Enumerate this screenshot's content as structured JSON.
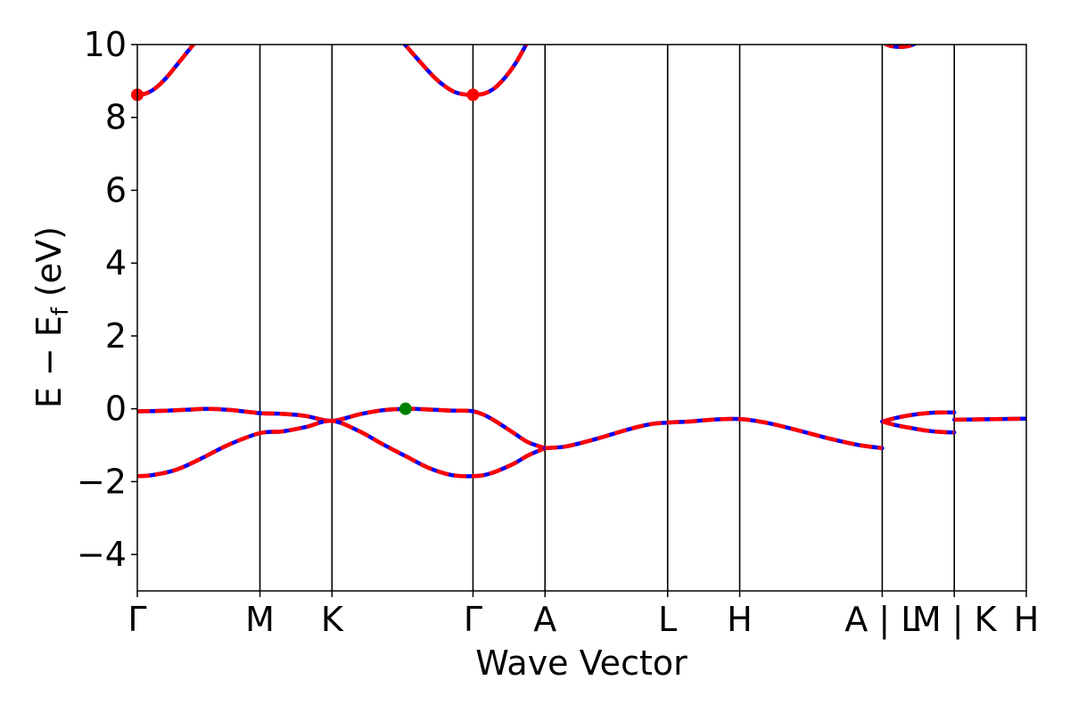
{
  "chart_data": {
    "type": "line",
    "xlabel": "Wave Vector",
    "ylabel_main": "E − E",
    "ylabel_sub": "f",
    "ylabel_unit": " (eV)",
    "ylim": [
      -5,
      10
    ],
    "yticks": [
      -4,
      -2,
      0,
      2,
      4,
      6,
      8,
      10
    ],
    "ytick_labels": [
      "−4",
      "−2",
      "0",
      "2",
      "4",
      "6",
      "8",
      "10"
    ],
    "xlim": [
      0,
      5.8
    ],
    "kpoints": [
      {
        "label": "Γ",
        "x": 0.0
      },
      {
        "label": "M",
        "x": 0.8
      },
      {
        "label": "K",
        "x": 1.27
      },
      {
        "label": "Γ",
        "x": 2.19
      },
      {
        "label": "A",
        "x": 2.66
      },
      {
        "label": "L",
        "x": 3.46
      },
      {
        "label": "H",
        "x": 3.93
      },
      {
        "label": "A | L",
        "x": 4.86
      },
      {
        "label": "M | K",
        "x": 5.33
      },
      {
        "label": "H",
        "x": 5.8
      }
    ],
    "segments": [
      {
        "name": "CB Γ-M",
        "x": [
          0,
          0.05,
          0.1,
          0.15,
          0.2,
          0.25,
          0.3,
          0.35,
          0.4,
          0.45,
          0.5
        ],
        "y": [
          8.62,
          8.65,
          8.75,
          8.92,
          9.14,
          9.4,
          9.66,
          9.92,
          10.18,
          10.45,
          10.7
        ]
      },
      {
        "name": "CB K-Γ",
        "x": [
          1.68,
          1.75,
          1.85,
          1.95,
          2.05,
          2.12,
          2.19,
          2.26,
          2.33,
          2.4,
          2.47,
          2.55
        ],
        "y": [
          10.3,
          9.98,
          9.5,
          9.05,
          8.74,
          8.64,
          8.62,
          8.65,
          8.8,
          9.1,
          9.5,
          10.1
        ]
      },
      {
        "name": "CB A|L-M",
        "x": [
          4.86,
          4.9,
          4.95,
          5.0,
          5.05,
          5.1
        ],
        "y": [
          10.08,
          9.98,
          9.94,
          9.94,
          9.98,
          10.08
        ]
      },
      {
        "name": "VB1 Γ-M-K-Γ-A",
        "x": [
          0,
          0.2,
          0.35,
          0.45,
          0.6,
          0.8,
          0.95,
          1.1,
          1.27,
          1.45,
          1.6,
          1.75,
          1.9,
          2.05,
          2.19,
          2.3,
          2.45,
          2.55,
          2.66
        ],
        "y": [
          -0.07,
          -0.05,
          -0.02,
          0.0,
          -0.03,
          -0.12,
          -0.14,
          -0.2,
          -0.33,
          -0.15,
          -0.04,
          0.0,
          -0.02,
          -0.05,
          -0.07,
          -0.25,
          -0.65,
          -0.92,
          -1.08
        ]
      },
      {
        "name": "VB2 Γ-M-K-Γ-A",
        "x": [
          0,
          0.1,
          0.25,
          0.4,
          0.6,
          0.8,
          0.95,
          1.1,
          1.27,
          1.45,
          1.6,
          1.75,
          1.9,
          2.05,
          2.19,
          2.3,
          2.45,
          2.55,
          2.66
        ],
        "y": [
          -1.85,
          -1.82,
          -1.68,
          -1.4,
          -0.98,
          -0.67,
          -0.62,
          -0.5,
          -0.33,
          -0.62,
          -0.97,
          -1.3,
          -1.62,
          -1.82,
          -1.85,
          -1.78,
          -1.52,
          -1.28,
          -1.08
        ]
      },
      {
        "name": "VB A-L-H-A",
        "x": [
          2.66,
          2.8,
          3.0,
          3.2,
          3.35,
          3.46,
          3.6,
          3.75,
          3.93,
          4.1,
          4.3,
          4.5,
          4.7,
          4.86
        ],
        "y": [
          -1.08,
          -1.03,
          -0.82,
          -0.57,
          -0.42,
          -0.38,
          -0.35,
          -0.3,
          -0.28,
          -0.38,
          -0.58,
          -0.8,
          -0.99,
          -1.08
        ]
      },
      {
        "name": "VB1 L-M",
        "x": [
          4.86,
          4.95,
          5.05,
          5.15,
          5.25,
          5.33
        ],
        "y": [
          -0.35,
          -0.25,
          -0.17,
          -0.12,
          -0.1,
          -0.1
        ]
      },
      {
        "name": "VB2 L-M",
        "x": [
          4.86,
          4.95,
          5.05,
          5.15,
          5.25,
          5.33
        ],
        "y": [
          -0.35,
          -0.45,
          -0.53,
          -0.6,
          -0.64,
          -0.65
        ]
      },
      {
        "name": "VB K-H",
        "x": [
          5.33,
          5.5,
          5.65,
          5.8
        ],
        "y": [
          -0.3,
          -0.29,
          -0.28,
          -0.27
        ]
      }
    ],
    "markers": [
      {
        "name": "cbm-1",
        "x": 0.0,
        "y": 8.62,
        "color": "#ff0000"
      },
      {
        "name": "cbm-2",
        "x": 2.19,
        "y": 8.62,
        "color": "#ff0000"
      },
      {
        "name": "vbm",
        "x": 1.75,
        "y": 0.0,
        "color": "#008000"
      }
    ],
    "colors": {
      "band_outer": "#0000ff",
      "band_dash": "#ff0000",
      "kline": "#000000"
    }
  }
}
